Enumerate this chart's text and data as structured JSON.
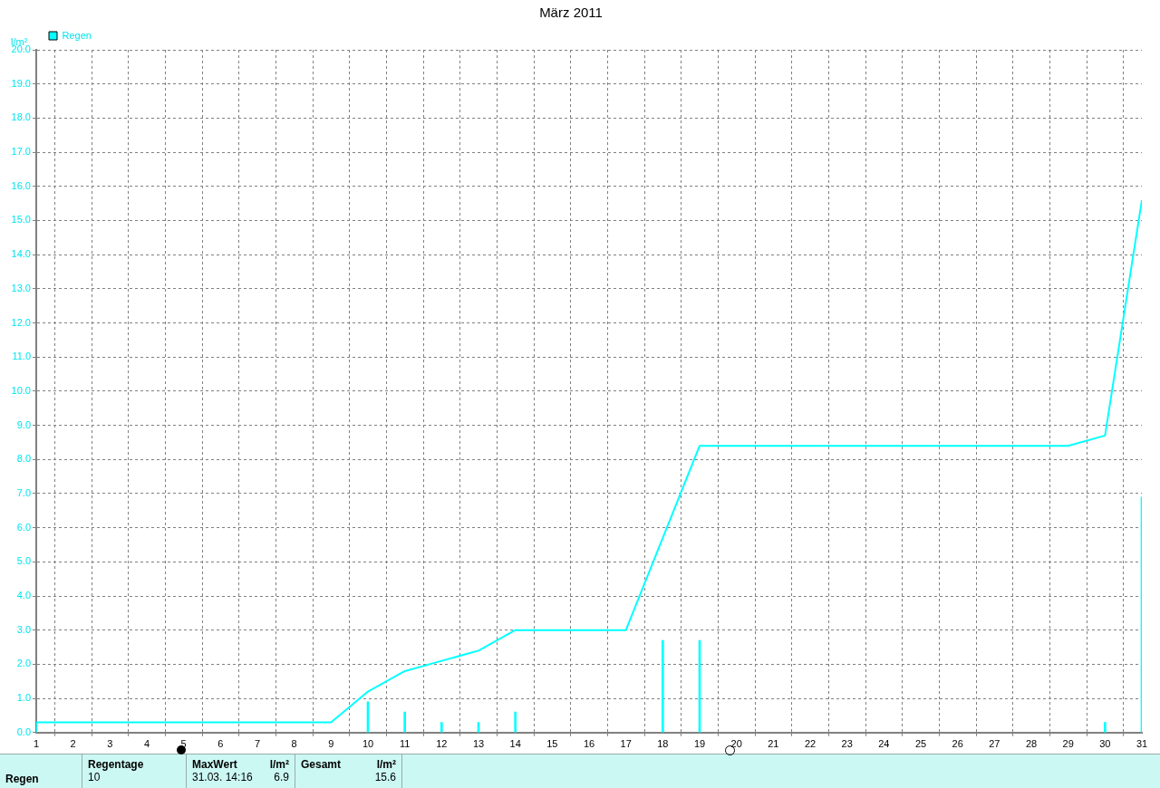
{
  "chart_data": {
    "type": "bar",
    "title": "März 2011",
    "ylabel": "l/m²",
    "x": [
      1,
      2,
      3,
      4,
      5,
      6,
      7,
      8,
      9,
      10,
      11,
      12,
      13,
      14,
      15,
      16,
      17,
      18,
      19,
      20,
      21,
      22,
      23,
      24,
      25,
      26,
      27,
      28,
      29,
      30,
      31
    ],
    "series": [
      {
        "color": "#00ffff",
        "values": [
          0.3,
          null,
          null,
          null,
          null,
          null,
          null,
          null,
          null,
          0.9,
          0.6,
          0.3,
          0.3,
          0.6,
          null,
          null,
          null,
          2.7,
          2.7,
          null,
          null,
          null,
          null,
          null,
          null,
          null,
          null,
          null,
          null,
          0.3,
          6.9
        ]
      },
      {
        "type": "line",
        "name": "Regen",
        "color": "#00ffff",
        "values": [
          0.3,
          0.3,
          0.3,
          0.3,
          0.3,
          0.3,
          0.3,
          0.3,
          0.3,
          1.2,
          1.8,
          2.1,
          2.4,
          3.0,
          3.0,
          3.0,
          3.0,
          5.7,
          8.4,
          8.4,
          8.4,
          8.4,
          8.4,
          8.4,
          8.4,
          8.4,
          8.4,
          8.4,
          8.4,
          8.7,
          15.6
        ]
      }
    ],
    "xlim": [
      1,
      31
    ],
    "xticks": [
      1,
      2,
      3,
      4,
      5,
      6,
      7,
      8,
      9,
      10,
      11,
      12,
      13,
      14,
      15,
      16,
      17,
      18,
      19,
      20,
      21,
      22,
      23,
      24,
      25,
      26,
      27,
      28,
      29,
      30,
      31
    ],
    "ylim": [
      0,
      20
    ],
    "yticks": [
      {
        "value": 0,
        "label": "0.0"
      },
      {
        "value": 1,
        "label": "1.0"
      },
      {
        "value": 2,
        "label": "2.0"
      },
      {
        "value": 3,
        "label": "3.0"
      },
      {
        "value": 4,
        "label": "4.0"
      },
      {
        "value": 5,
        "label": "5.0"
      },
      {
        "value": 6,
        "label": "6.0"
      },
      {
        "value": 7,
        "label": "7.0"
      },
      {
        "value": 8,
        "label": "8.0"
      },
      {
        "value": 9,
        "label": "9.0"
      },
      {
        "value": 10,
        "label": "10.0"
      },
      {
        "value": 11,
        "label": "11.0"
      },
      {
        "value": 12,
        "label": "12.0"
      },
      {
        "value": 13,
        "label": "13.0"
      },
      {
        "value": 14,
        "label": "14.0"
      },
      {
        "value": 15,
        "label": "15.0"
      },
      {
        "value": 16,
        "label": "16.0"
      },
      {
        "value": 17,
        "label": "17.0"
      },
      {
        "value": 18,
        "label": "18.0"
      },
      {
        "value": 19,
        "label": "19.0"
      },
      {
        "value": 20,
        "label": "20.0"
      }
    ],
    "grid": true,
    "legend": "top left",
    "line_style": "solid",
    "marker": "none",
    "annotations": [
      "Regen",
      "Regentage",
      "10",
      "MaxWert",
      "l/m²",
      "31.03.  14:16",
      "6.9",
      "Gesamt",
      "l/m²",
      "15.6"
    ]
  }
}
